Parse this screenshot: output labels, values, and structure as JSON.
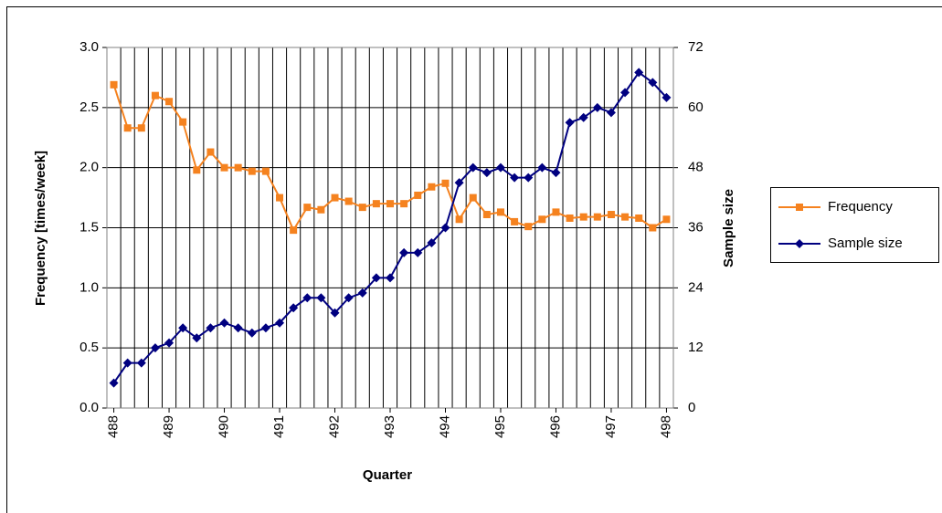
{
  "chart_data": {
    "type": "line",
    "x_label": "Quarter",
    "y_label": "Frequency [times/week]",
    "y2_label": "Sample size",
    "categories": [
      "488",
      null,
      null,
      null,
      "489",
      null,
      null,
      null,
      "490",
      null,
      null,
      null,
      "491",
      null,
      null,
      null,
      "492",
      null,
      null,
      null,
      "493",
      null,
      null,
      null,
      "494",
      null,
      null,
      null,
      "495",
      null,
      null,
      null,
      "496",
      null,
      null,
      null,
      "497",
      null,
      null,
      null,
      "498"
    ],
    "series": [
      {
        "name": "Frequency",
        "color": "#f5821f",
        "marker": "square",
        "values": [
          2.69,
          2.33,
          2.33,
          2.6,
          2.55,
          2.38,
          1.98,
          2.13,
          2.0,
          2.0,
          1.97,
          1.97,
          1.75,
          1.48,
          1.67,
          1.65,
          1.75,
          1.72,
          1.67,
          1.7,
          1.7,
          1.7,
          1.77,
          1.84,
          1.87,
          1.57,
          1.75,
          1.61,
          1.63,
          1.55,
          1.51,
          1.57,
          1.63,
          1.58,
          1.59,
          1.59,
          1.61,
          1.59,
          1.58,
          1.5,
          1.57
        ]
      },
      {
        "name": "Sample size",
        "color": "#000080",
        "marker": "diamond",
        "axis": "y2",
        "values": [
          5,
          9,
          9,
          12,
          13,
          16,
          14,
          16,
          17,
          16,
          15,
          16,
          17,
          20,
          22,
          22,
          19,
          22,
          23,
          26,
          26,
          31,
          31,
          33,
          36,
          45,
          48,
          47,
          48,
          46,
          46,
          48,
          47,
          57,
          58,
          60,
          59,
          63,
          67,
          65,
          62
        ]
      }
    ],
    "ylim": [
      0,
      3
    ],
    "yticks": [
      {
        "value": 0,
        "label": "0.0"
      },
      {
        "value": 0.5,
        "label": "0.5"
      },
      {
        "value": 1,
        "label": "1.0"
      },
      {
        "value": 1.5,
        "label": "1.5"
      },
      {
        "value": 2,
        "label": "2.0"
      },
      {
        "value": 2.5,
        "label": "2.5"
      },
      {
        "value": 3,
        "label": "3.0"
      }
    ],
    "y2lim": [
      0,
      72
    ],
    "y2ticks": [
      0,
      12,
      24,
      36,
      48,
      60,
      72
    ],
    "grid": true,
    "legend": "right"
  }
}
